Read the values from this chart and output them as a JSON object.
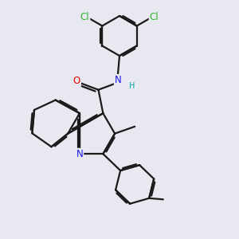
{
  "bg_color": "#e8e8f0",
  "bond_color": "#1a1a1a",
  "bond_width": 1.6,
  "dbo": 0.07,
  "atom_colors": {
    "N": "#1a1aee",
    "O": "#ee0000",
    "Cl": "#2db52d",
    "H": "#00aaaa"
  },
  "font_size": 8.5,
  "fig_size": [
    3.0,
    3.0
  ],
  "dpi": 100,
  "xlim": [
    0,
    10
  ],
  "ylim": [
    0,
    10
  ]
}
